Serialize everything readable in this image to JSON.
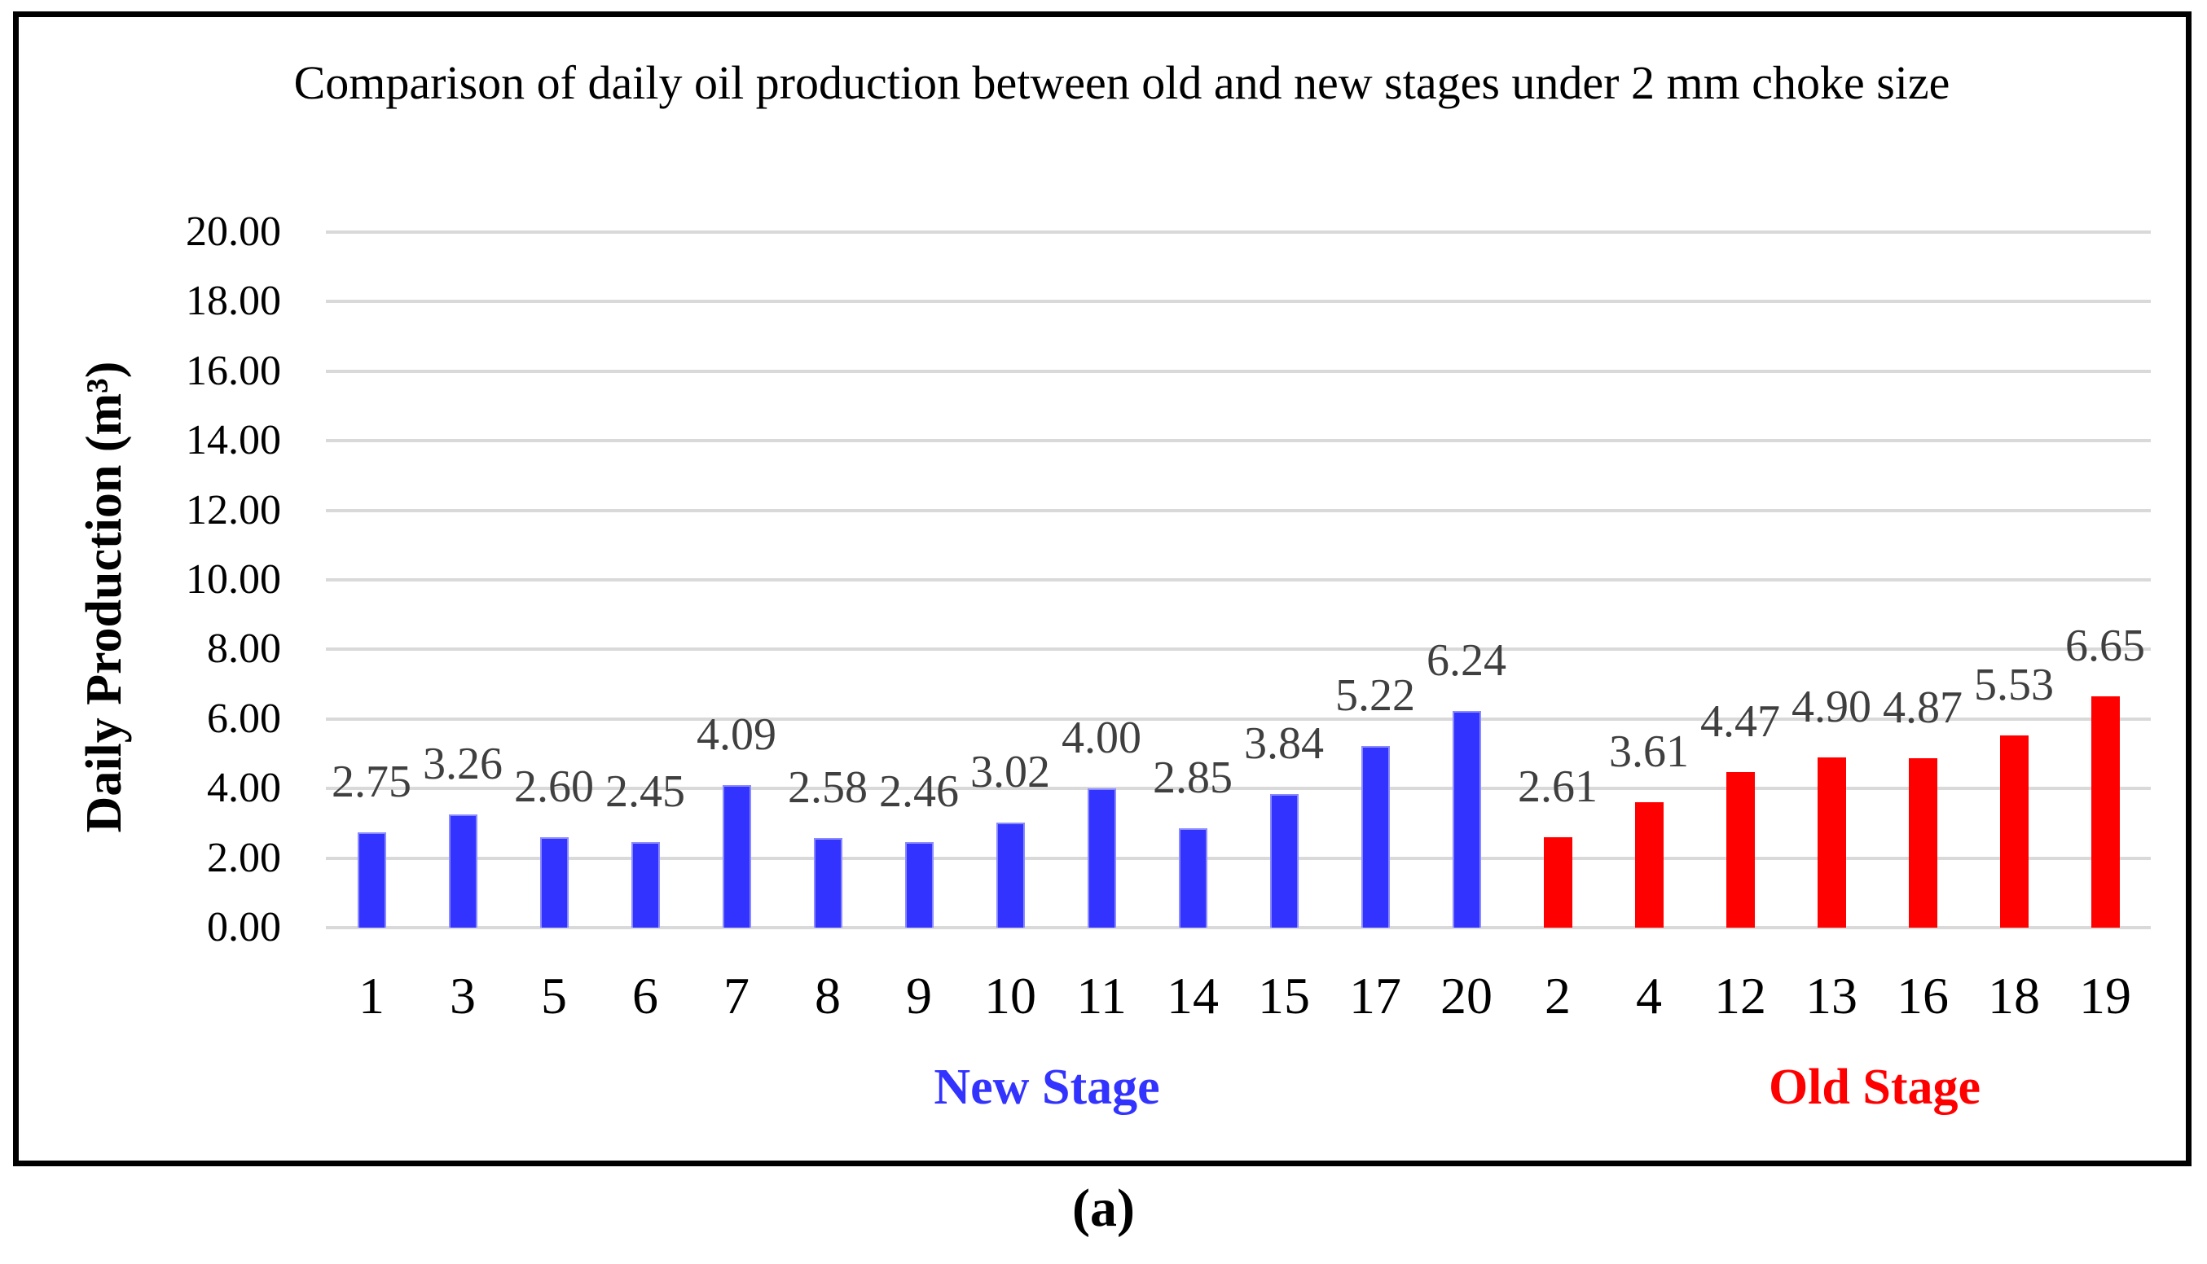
{
  "figure": {
    "caption": "(a)"
  },
  "chart_data": {
    "type": "bar",
    "title": "Comparison of daily oil production between old and new stages under 2 mm choke size",
    "ylabel": "Daily Production (m³)",
    "xlabel": "",
    "ylim": [
      0,
      20
    ],
    "ytick_step": 2,
    "ytick_format": "0.00",
    "grid": "horizontal",
    "gridline_color": "#D9D9D9",
    "value_label_color": "#3F3F3F",
    "legend_position": "group labels below x-axis",
    "series": [
      {
        "name": "New Stage",
        "color": "#3333FF",
        "edge_color": "#8A8AFF",
        "categories": [
          "1",
          "3",
          "5",
          "6",
          "7",
          "8",
          "9",
          "10",
          "11",
          "14",
          "15",
          "17",
          "20"
        ],
        "values": [
          2.75,
          3.26,
          2.6,
          2.45,
          4.09,
          2.58,
          2.46,
          3.02,
          4.0,
          2.85,
          3.84,
          5.22,
          6.24
        ]
      },
      {
        "name": "Old Stage",
        "color": "#FF0000",
        "edge_color": "#FF0000",
        "categories": [
          "2",
          "4",
          "12",
          "13",
          "16",
          "18",
          "19"
        ],
        "values": [
          2.61,
          3.61,
          4.47,
          4.9,
          4.87,
          5.53,
          6.65
        ]
      }
    ]
  }
}
